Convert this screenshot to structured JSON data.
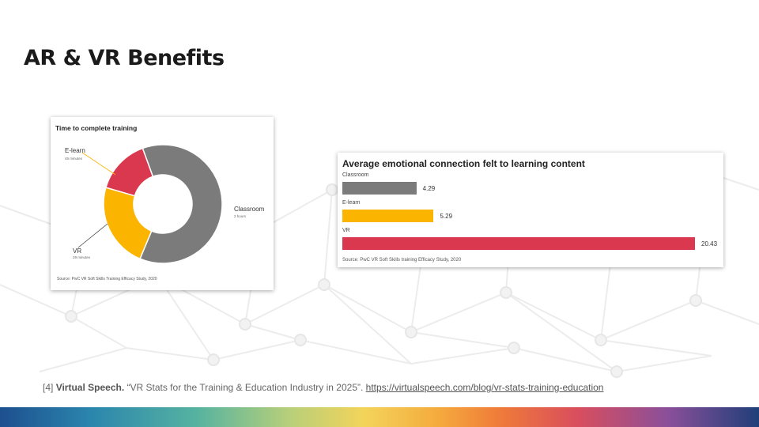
{
  "slide": {
    "title": "AR & VR Benefits"
  },
  "footer": {
    "ref_number": "[4]",
    "author": "Virtual Speech.",
    "citation": " “VR Stats for the Training & Education Industry in 2025”.",
    "url": "https://virtualspeech.com/blog/vr-stats-training-education"
  },
  "colors": {
    "classroom": "#7b7b7b",
    "elearn": "#fbb400",
    "vr": "#d9384f"
  },
  "chart_data": [
    {
      "type": "pie",
      "variant": "donut",
      "title": "Time to complete training",
      "labels": [
        "Classroom",
        "E-learn",
        "VR"
      ],
      "sublabels": [
        "2 hours",
        "45 minutes",
        "29 minutes"
      ],
      "values": [
        120,
        45,
        29
      ],
      "source": "Source: PwC VR Soft Skills Training Efficacy Study, 2020"
    },
    {
      "type": "bar",
      "orientation": "horizontal",
      "title": "Average emotional connection felt to learning content",
      "categories": [
        "Classroom",
        "E-learn",
        "VR"
      ],
      "values": [
        4.29,
        5.29,
        20.43
      ],
      "value_labels": [
        "4.29",
        "5.29",
        "20.43"
      ],
      "xlim": [
        0,
        20.43
      ],
      "source": "Source: PwC VR Soft Skills training Efficacy Study, 2020"
    }
  ]
}
